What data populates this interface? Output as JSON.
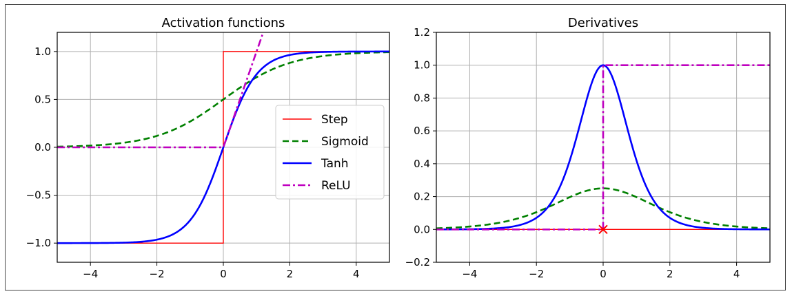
{
  "chart_data": [
    {
      "type": "line",
      "title": "Activation functions",
      "xlabel": "",
      "ylabel": "",
      "xlim": [
        -5,
        5
      ],
      "ylim": [
        -1.2,
        1.2
      ],
      "xticks": [
        -4,
        -2,
        0,
        2,
        4
      ],
      "yticks": [
        -1.0,
        -0.5,
        0.0,
        0.5,
        1.0
      ],
      "xtick_labels": [
        "−4",
        "−2",
        "0",
        "2",
        "4"
      ],
      "ytick_labels": [
        "−1.0",
        "−0.5",
        "0.0",
        "0.5",
        "1.0"
      ],
      "grid": true,
      "legend": {
        "position": "center-right"
      },
      "series": [
        {
          "name": "Step",
          "color": "#ff0000",
          "style": "solid",
          "function": "step"
        },
        {
          "name": "Sigmoid",
          "color": "#008000",
          "style": "dashed",
          "function": "sigmoid"
        },
        {
          "name": "Tanh",
          "color": "#0000ff",
          "style": "solid",
          "function": "tanh"
        },
        {
          "name": "ReLU",
          "color": "#bf00bf",
          "style": "dashdot",
          "function": "relu"
        }
      ]
    },
    {
      "type": "line",
      "title": "Derivatives",
      "xlabel": "",
      "ylabel": "",
      "xlim": [
        -5,
        5
      ],
      "ylim": [
        -0.2,
        1.2
      ],
      "xticks": [
        -4,
        -2,
        0,
        2,
        4
      ],
      "yticks": [
        -0.2,
        0.0,
        0.2,
        0.4,
        0.6,
        0.8,
        1.0,
        1.2
      ],
      "xtick_labels": [
        "−4",
        "−2",
        "0",
        "2",
        "4"
      ],
      "ytick_labels": [
        "−0.2",
        "0.0",
        "0.2",
        "0.4",
        "0.6",
        "0.8",
        "1.0",
        "1.2"
      ],
      "grid": true,
      "series": [
        {
          "color": "#ff0000",
          "style": "solid",
          "function": "step_derivative"
        },
        {
          "color": "#008000",
          "style": "dashed",
          "function": "sigmoid_derivative"
        },
        {
          "color": "#0000ff",
          "style": "solid",
          "function": "tanh_derivative"
        },
        {
          "color": "#bf00bf",
          "style": "dashdot",
          "function": "relu_derivative"
        }
      ],
      "markers": [
        {
          "x": 0,
          "y": 0,
          "symbol": "x",
          "color": "#ff0000"
        }
      ]
    }
  ]
}
